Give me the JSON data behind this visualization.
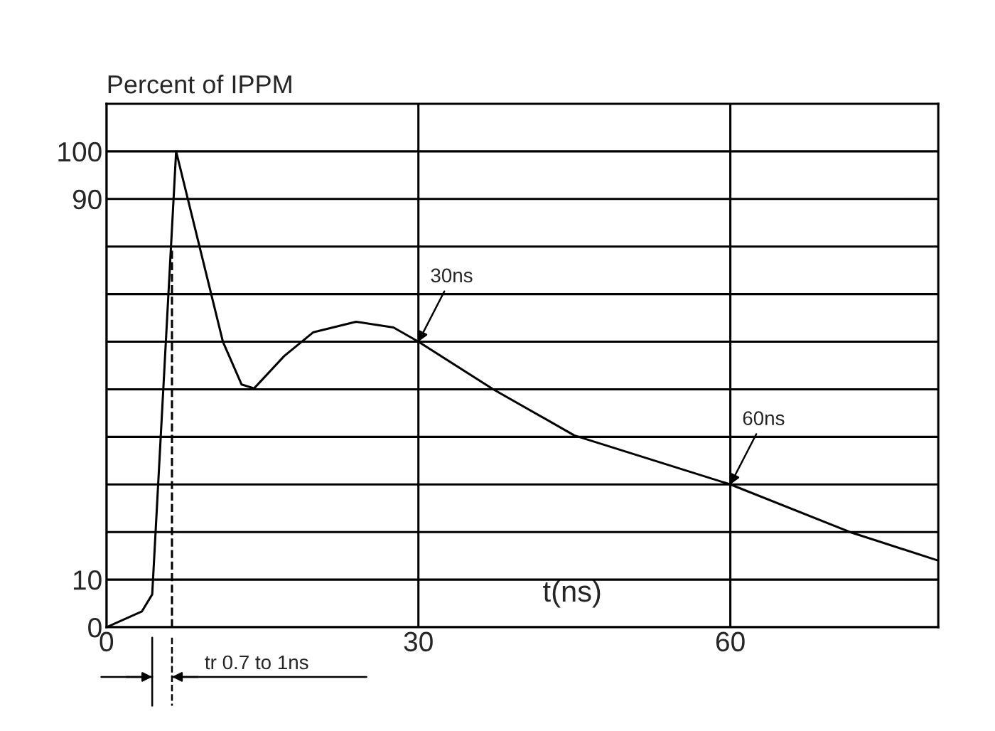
{
  "chart_data": {
    "type": "line",
    "xlabel": "t(ns)",
    "ylabel": "Percent of IPPM",
    "series": [
      {
        "color": "#000000",
        "x": [
          0,
          3.4,
          4.4,
          6.7,
          11.2,
          13,
          14.2,
          17.1,
          19.9,
          24,
          27.6,
          30,
          37.2,
          45,
          60,
          71.5,
          80
        ],
        "values": [
          0,
          3.3,
          6.9,
          100,
          60,
          51,
          50.2,
          57,
          62,
          64.2,
          63,
          60,
          50,
          40.3,
          30,
          20,
          14
        ]
      },
      {
        "color": "#000000",
        "line_style": "dashed",
        "x": [
          6.3,
          6.3
        ],
        "values": [
          0,
          80
        ]
      }
    ],
    "xlim": [
      0,
      80
    ],
    "xticks": [
      0,
      30,
      60
    ],
    "ylim": [
      0,
      110
    ],
    "yticks": [
      0,
      10,
      {
        "value": 20,
        "label": null
      },
      {
        "value": 30,
        "label": null
      },
      {
        "value": 40,
        "label": null
      },
      {
        "value": 50,
        "label": null
      },
      {
        "value": 60,
        "label": null
      },
      {
        "value": 70,
        "label": null
      },
      {
        "value": 80,
        "label": null
      },
      90,
      100
    ],
    "grid": true,
    "legend": false,
    "marker": "none",
    "line_style": "solid",
    "annotations": [
      {
        "text": "30ns",
        "x": 30,
        "y": 60
      },
      {
        "text": "60ns",
        "x": 60,
        "y": 30
      },
      "tr 0.7 to 1ns"
    ]
  }
}
